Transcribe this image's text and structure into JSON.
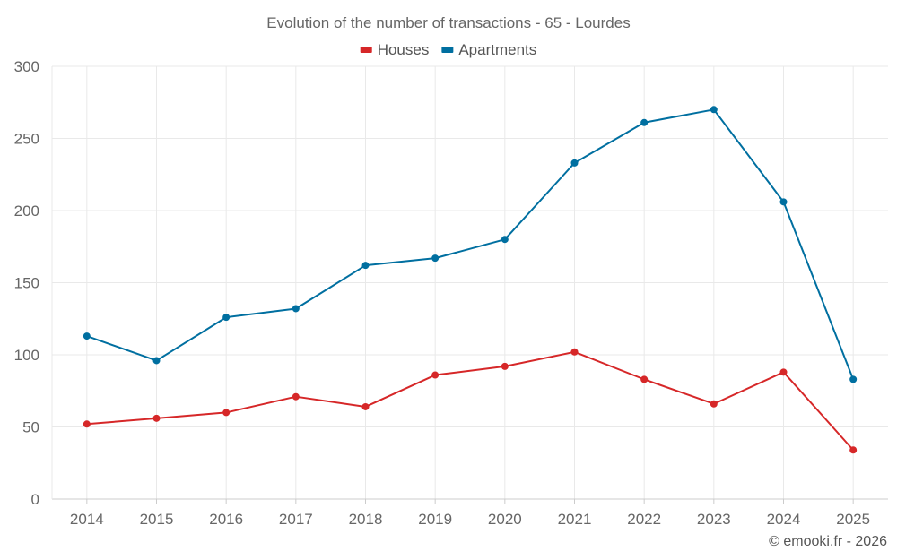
{
  "chart_data": {
    "type": "line",
    "title": "Evolution of the number of transactions - 65 - Lourdes",
    "categories": [
      "2014",
      "2015",
      "2016",
      "2017",
      "2018",
      "2019",
      "2020",
      "2021",
      "2022",
      "2023",
      "2024",
      "2025"
    ],
    "series": [
      {
        "name": "Houses",
        "color": "#d62728",
        "values": [
          52,
          56,
          60,
          71,
          64,
          86,
          92,
          102,
          83,
          66,
          88,
          34
        ]
      },
      {
        "name": "Apartments",
        "color": "#006fa0",
        "values": [
          113,
          96,
          126,
          132,
          162,
          167,
          180,
          233,
          261,
          270,
          206,
          83
        ]
      }
    ],
    "ylim": [
      0,
      300
    ],
    "yticks": [
      0,
      50,
      100,
      150,
      200,
      250,
      300
    ],
    "xlabel": "",
    "ylabel": "",
    "grid": true,
    "legend_position": "top-center"
  },
  "credit": "© emooki.fr - 2026"
}
